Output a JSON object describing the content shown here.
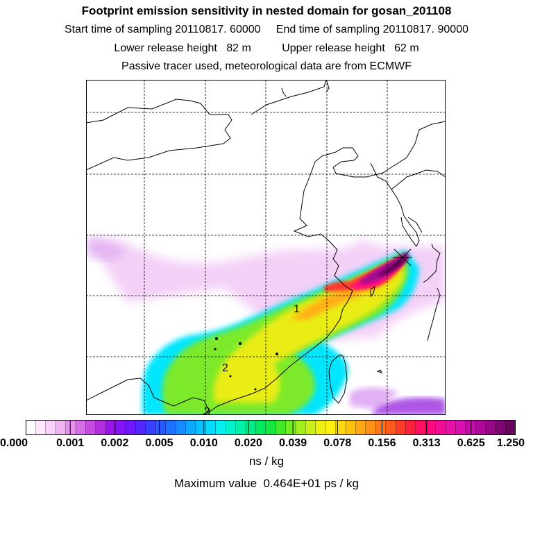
{
  "header": {
    "title": "Footprint emission sensitivity in nested domain for gosan_201108",
    "line1": "Start time of sampling 20110817. 60000     End time of sampling 20110817. 90000",
    "line2": "Lower release height   82 m          Upper release height   62 m",
    "line3": "Passive tracer used, meteorological data are from ECMWF"
  },
  "map": {
    "region_labels": [
      "1",
      "2",
      "3"
    ],
    "receptor": "gosan"
  },
  "colorbar": {
    "tick_labels": [
      "0.000",
      "0.001",
      "0.002",
      "0.005",
      "0.010",
      "0.020",
      "0.039",
      "0.078",
      "0.156",
      "0.313",
      "0.625",
      "1.250"
    ],
    "colors": [
      "#ffffff",
      "#fde8fd",
      "#f9d0f9",
      "#f1b4f3",
      "#e492ec",
      "#d56fe6",
      "#c44de0",
      "#b22ddc",
      "#9a16e8",
      "#8415f6",
      "#6e18ff",
      "#5228ff",
      "#3a40ff",
      "#2a58ff",
      "#1f72ff",
      "#168cff",
      "#10a8ff",
      "#08c2ff",
      "#00dcff",
      "#00f0f0",
      "#00f2cc",
      "#00f0a8",
      "#00ec84",
      "#00e860",
      "#18e640",
      "#46e82c",
      "#74ec22",
      "#a2ee1c",
      "#ccee18",
      "#eeee14",
      "#fff010",
      "#ffd810",
      "#ffc010",
      "#ffa814",
      "#ff9018",
      "#ff781c",
      "#ff5a20",
      "#ff3c28",
      "#ff2040",
      "#ff1060",
      "#ff0880",
      "#f40c98",
      "#e810a8",
      "#d810b0",
      "#c40ca8",
      "#ad0a9a",
      "#960888",
      "#7e0672",
      "#68045a"
    ],
    "units": "ns / kg"
  },
  "footer": {
    "max_value": "Maximum value  0.464E+01 ps / kg"
  }
}
